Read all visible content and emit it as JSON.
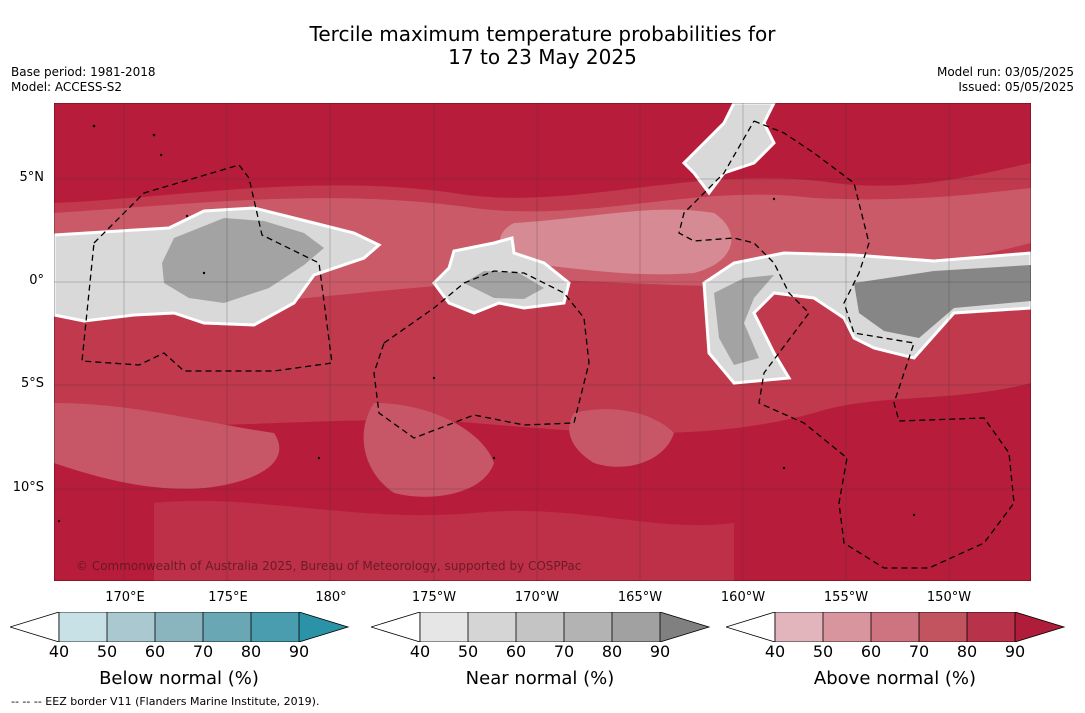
{
  "title_line1": "Tercile maximum temperature probabilities for",
  "title_line2": "17 to 23 May 2025",
  "base_period": "Base period: 1981-2018",
  "model": "Model: ACCESS-S2",
  "model_run": "Model run: 03/05/2025",
  "issued": "Issued: 05/05/2025",
  "lat_labels": [
    "5°N",
    "0°",
    "5°S",
    "10°S"
  ],
  "lon_labels": [
    "170°E",
    "175°E",
    "180°",
    "175°W",
    "170°W",
    "165°W",
    "160°W",
    "155°W",
    "150°W"
  ],
  "copyright": "© Commonwealth of Australia 2025, Bureau of Meteorology, supported by COSPPac",
  "footer": "--  --  -- EEZ border V11 (Flanders Marine Institute, 2019).",
  "colorbars": [
    {
      "title": "Below normal (%)",
      "ticks": [
        "40",
        "50",
        "60",
        "70",
        "80",
        "90"
      ],
      "colors": [
        "#c8e1e7",
        "#a9c8cf",
        "#8ab5bf",
        "#6aa7b4",
        "#4a9dae",
        "#2a93a8"
      ]
    },
    {
      "title": "Near normal (%)",
      "ticks": [
        "40",
        "50",
        "60",
        "70",
        "80",
        "90"
      ],
      "colors": [
        "#e6e6e6",
        "#d5d5d5",
        "#c4c4c4",
        "#b3b3b3",
        "#a1a1a1",
        "#808080"
      ]
    },
    {
      "title": "Above normal (%)",
      "ticks": [
        "40",
        "50",
        "60",
        "70",
        "80",
        "90"
      ],
      "colors": [
        "#e1b5bb",
        "#d8959e",
        "#cd7480",
        "#c2545f",
        "#b83349",
        "#b01d3a"
      ]
    }
  ]
}
